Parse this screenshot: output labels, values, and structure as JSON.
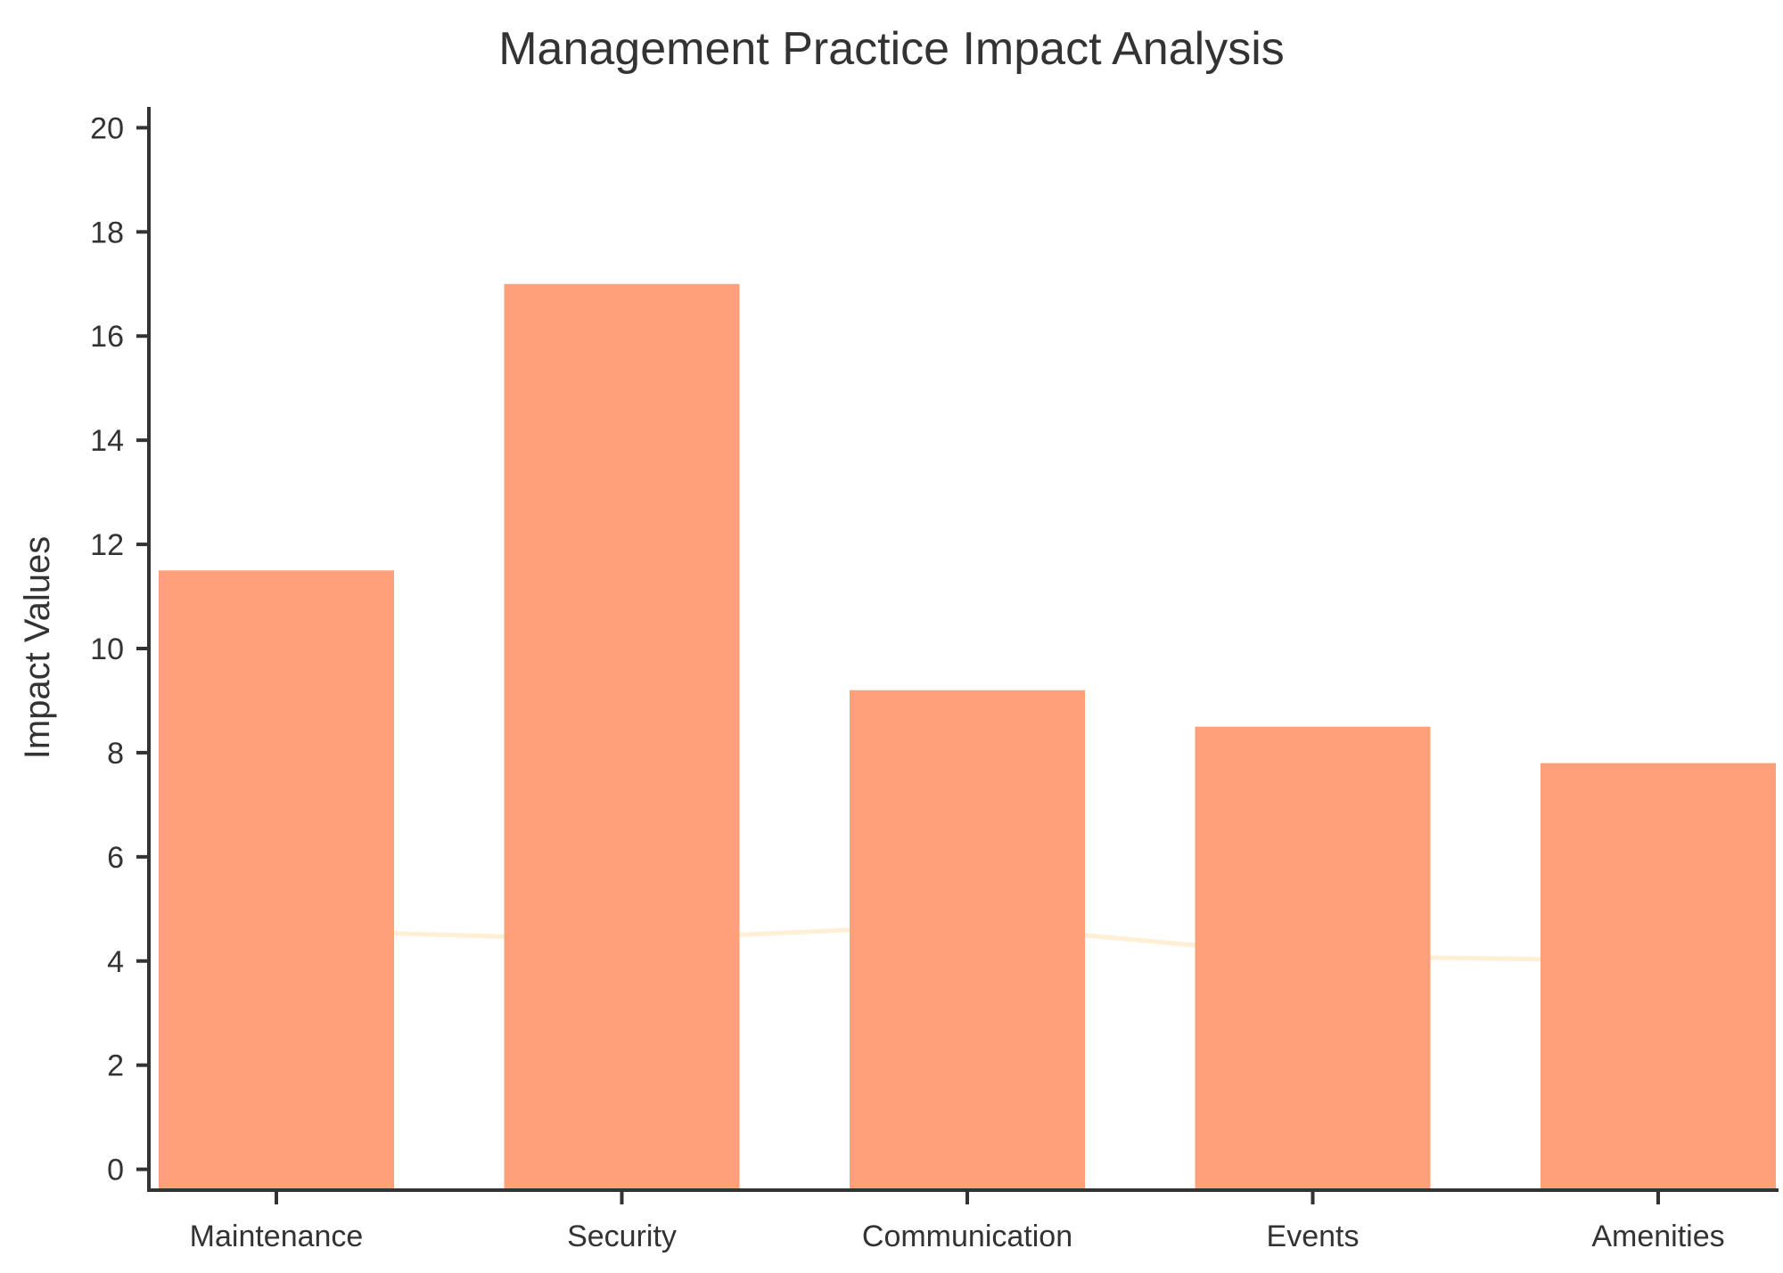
{
  "chart_data": {
    "type": "bar",
    "title": "Management Practice Impact Analysis",
    "xlabel": "",
    "ylabel": "Impact Values",
    "categories": [
      "Maintenance",
      "Security",
      "Communication",
      "Events",
      "Amenities"
    ],
    "series": [
      {
        "type": "bar",
        "values": [
          11.5,
          17.0,
          9.2,
          8.5,
          7.8
        ],
        "color": "#FFA07A"
      },
      {
        "type": "line",
        "values": [
          4.6,
          4.4,
          4.7,
          4.1,
          4.0
        ],
        "color": "#FFEFD5"
      }
    ],
    "ylim": [
      -0.4,
      20.4
    ],
    "yticks": [
      0,
      2,
      4,
      6,
      8,
      10,
      12,
      14,
      16,
      18,
      20
    ],
    "grid": false,
    "legend": "none"
  }
}
